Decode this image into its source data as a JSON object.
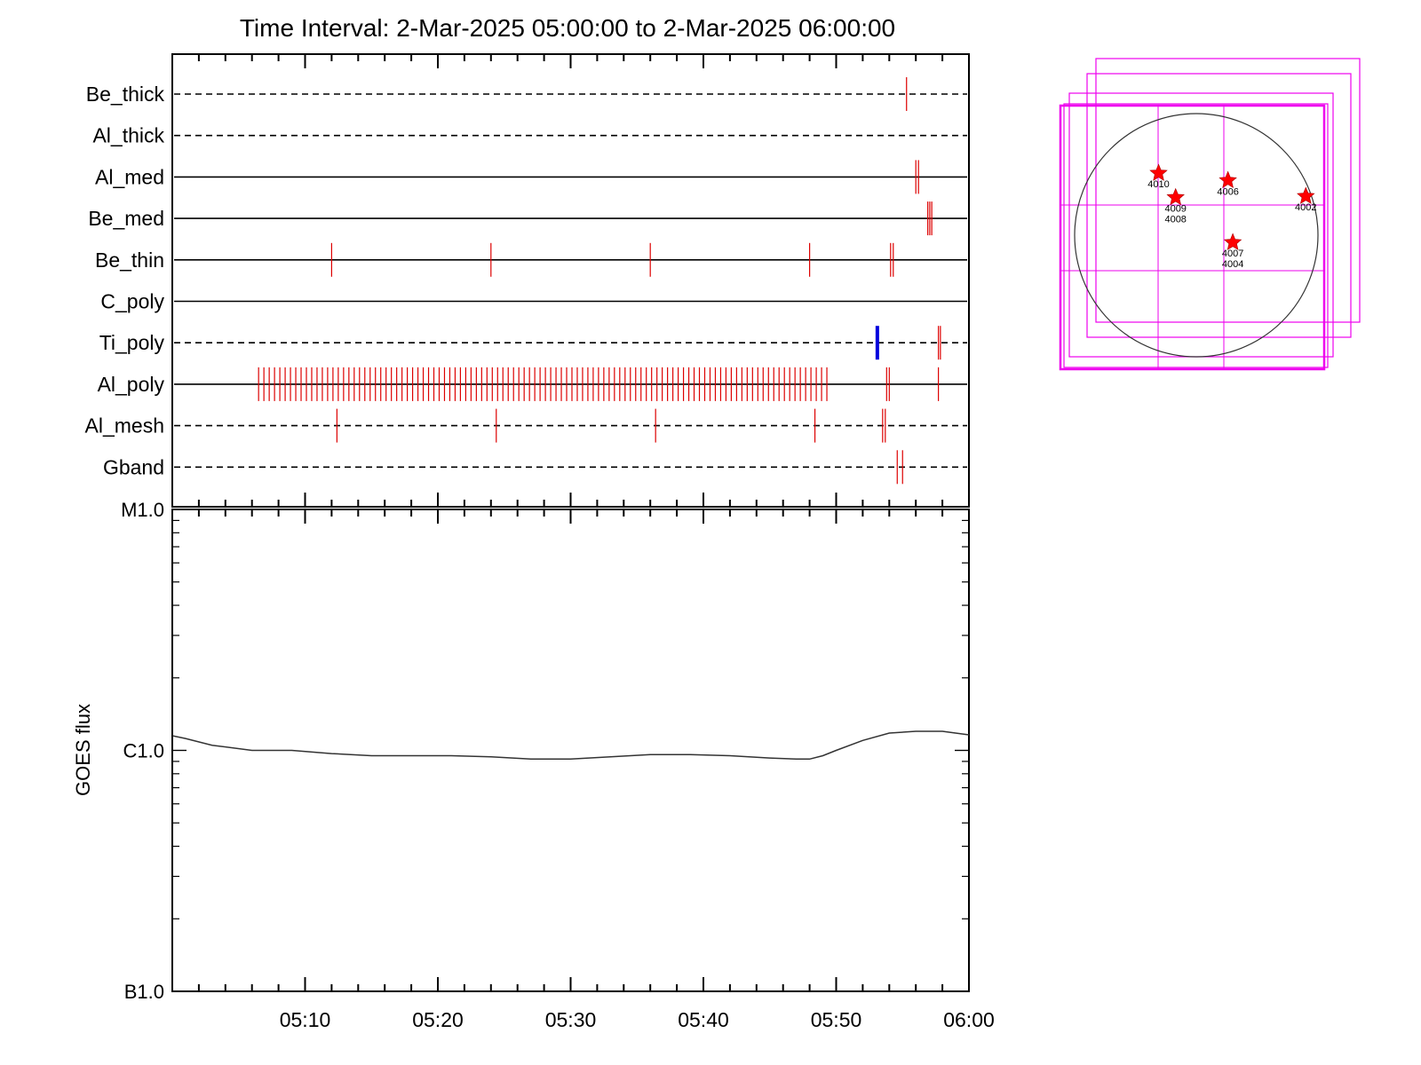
{
  "chart_data": [
    {
      "type": "timeline",
      "title": "Time Interval:  2-Mar-2025 05:00:00 to  2-Mar-2025 06:00:00",
      "x_range_minutes": [
        0,
        60
      ],
      "x_tick_labels": [
        "05:10",
        "05:20",
        "05:30",
        "05:40",
        "05:50",
        "06:00"
      ],
      "x_tick_minutes": [
        10,
        20,
        30,
        40,
        50,
        60
      ],
      "rows": [
        {
          "label": "Be_thick",
          "line": "dashed",
          "events": [
            55.3
          ]
        },
        {
          "label": "Al_thick",
          "line": "dashed",
          "events": []
        },
        {
          "label": "Al_med",
          "line": "solid",
          "events": [
            56.0,
            56.2
          ]
        },
        {
          "label": "Be_med",
          "line": "solid",
          "events": [
            56.9,
            57.05,
            57.2
          ]
        },
        {
          "label": "Be_thin",
          "line": "solid",
          "events": [
            12.0,
            24.0,
            36.0,
            48.0,
            54.1,
            54.3
          ]
        },
        {
          "label": "C_poly",
          "line": "solid",
          "events": []
        },
        {
          "label": "Ti_poly",
          "line": "dashed",
          "events": [
            57.7,
            57.85
          ],
          "highlight": {
            "minute": 53.1,
            "color": "#0000dd"
          }
        },
        {
          "label": "Al_poly",
          "line": "solid",
          "events": "every 0.4 min from 06.5 to 49.5, plus 53.8, 54.0, 57.7"
        },
        {
          "label": "Al_mesh",
          "line": "dashed",
          "events": [
            12.4,
            24.4,
            36.4,
            48.4,
            53.5,
            53.7
          ]
        },
        {
          "label": "Gband",
          "line": "dashed",
          "events": [
            54.6,
            55.0
          ]
        }
      ],
      "event_color": "#dd0000"
    },
    {
      "type": "line",
      "ylabel": "GOES flux",
      "y_scale": "log",
      "y_tick_labels": [
        "M1.0",
        "C1.0",
        "B1.0"
      ],
      "y_tick_values": [
        1e-05,
        1e-06,
        1e-07
      ],
      "ylim": [
        1e-07,
        1e-05
      ],
      "x_range_minutes": [
        0,
        60
      ],
      "x_tick_labels": [
        "05:10",
        "05:20",
        "05:30",
        "05:40",
        "05:50",
        "06:00"
      ],
      "series": [
        {
          "x": [
            0,
            1,
            3,
            6,
            9,
            12,
            15,
            18,
            21,
            24,
            27,
            30,
            33,
            36,
            39,
            42,
            45,
            47,
            48,
            49,
            50,
            52,
            54,
            56,
            58,
            59,
            60
          ],
          "y": [
            1.15e-06,
            1.12e-06,
            1.05e-06,
            1e-06,
            1e-06,
            9.7e-07,
            9.5e-07,
            9.5e-07,
            9.5e-07,
            9.4e-07,
            9.2e-07,
            9.2e-07,
            9.4e-07,
            9.6e-07,
            9.6e-07,
            9.5e-07,
            9.3e-07,
            9.2e-07,
            9.2e-07,
            9.5e-07,
            1e-06,
            1.1e-06,
            1.18e-06,
            1.2e-06,
            1.2e-06,
            1.18e-06,
            1.16e-06
          ]
        }
      ]
    },
    {
      "type": "scatter",
      "description_markers": "active regions on solar disk",
      "points": [
        {
          "label": "4010",
          "x": -0.31,
          "y": 0.51
        },
        {
          "label": "4006",
          "x": 0.26,
          "y": 0.45
        },
        {
          "label": "4009",
          "x": -0.17,
          "y": 0.31
        },
        {
          "label": "4008",
          "x": -0.17,
          "y": 0.31
        },
        {
          "label": "4002",
          "x": 0.9,
          "y": 0.32
        },
        {
          "label": "4007",
          "x": 0.3,
          "y": -0.06
        },
        {
          "label": "4004",
          "x": 0.3,
          "y": -0.06
        }
      ]
    }
  ],
  "colors": {
    "event": "#dd0000",
    "highlight": "#0000dd",
    "fov": "#ee00ee",
    "star": "#ff0000"
  }
}
